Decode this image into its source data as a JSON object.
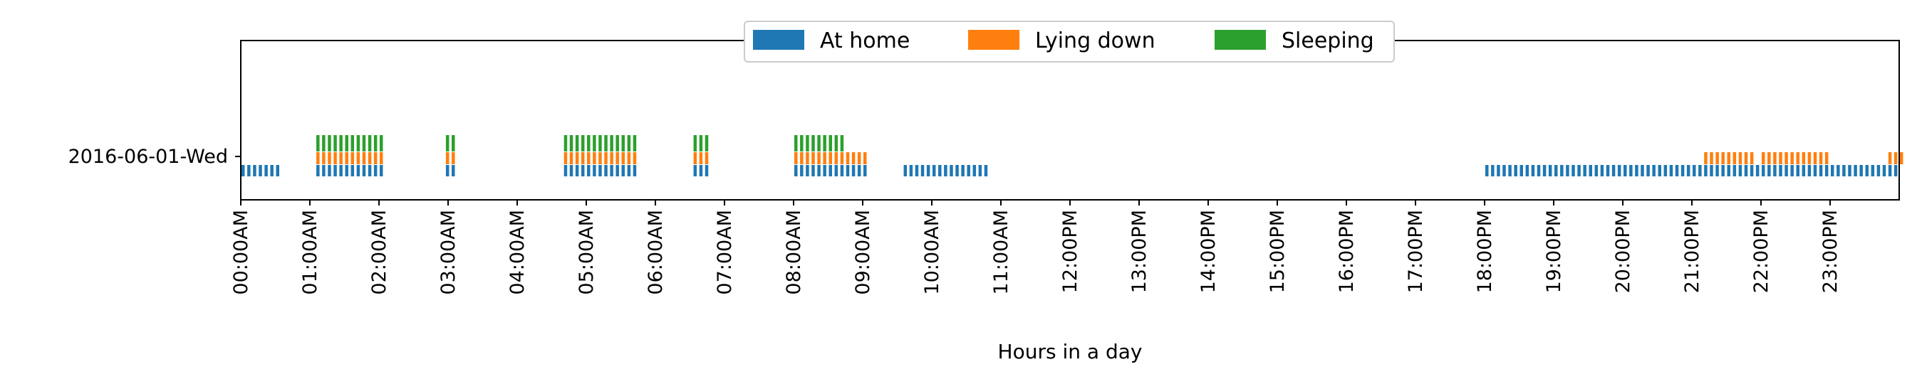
{
  "chart_data": {
    "type": "timeline",
    "xlabel": "Hours in a day",
    "x_range_hours": [
      0,
      24
    ],
    "x_ticks": [
      "00:00AM",
      "01:00AM",
      "02:00AM",
      "03:00AM",
      "04:00AM",
      "05:00AM",
      "06:00AM",
      "07:00AM",
      "08:00AM",
      "09:00AM",
      "10:00AM",
      "11:00AM",
      "12:00PM",
      "13:00PM",
      "14:00PM",
      "15:00PM",
      "16:00PM",
      "17:00PM",
      "18:00PM",
      "19:00PM",
      "20:00PM",
      "21:00PM",
      "22:00PM",
      "23:00PM"
    ],
    "y_categories": [
      "2016-06-01-Wed"
    ],
    "legend_position": "top-center",
    "sample_interval_minutes": 5,
    "series": [
      {
        "name": "At home",
        "color": "#1f77b4",
        "intervals_hours": [
          [
            0.0,
            0.583
          ],
          [
            1.083,
            2.083
          ],
          [
            2.958,
            3.083
          ],
          [
            4.667,
            5.75
          ],
          [
            6.542,
            6.75
          ],
          [
            8.0,
            9.083
          ],
          [
            9.583,
            10.833
          ],
          [
            18.0,
            24.0
          ]
        ]
      },
      {
        "name": "Lying down",
        "color": "#ff7f0e",
        "intervals_hours": [
          [
            1.083,
            2.083
          ],
          [
            2.958,
            3.083
          ],
          [
            4.667,
            5.75
          ],
          [
            6.542,
            6.75
          ],
          [
            8.0,
            9.083
          ],
          [
            21.167,
            21.917
          ],
          [
            22.0,
            23.0
          ],
          [
            23.833,
            24.0
          ]
        ]
      },
      {
        "name": "Sleeping",
        "color": "#2ca02c",
        "intervals_hours": [
          [
            1.083,
            2.083
          ],
          [
            2.958,
            3.083
          ],
          [
            4.667,
            5.75
          ],
          [
            6.542,
            6.75
          ],
          [
            8.0,
            8.667
          ]
        ]
      }
    ]
  }
}
